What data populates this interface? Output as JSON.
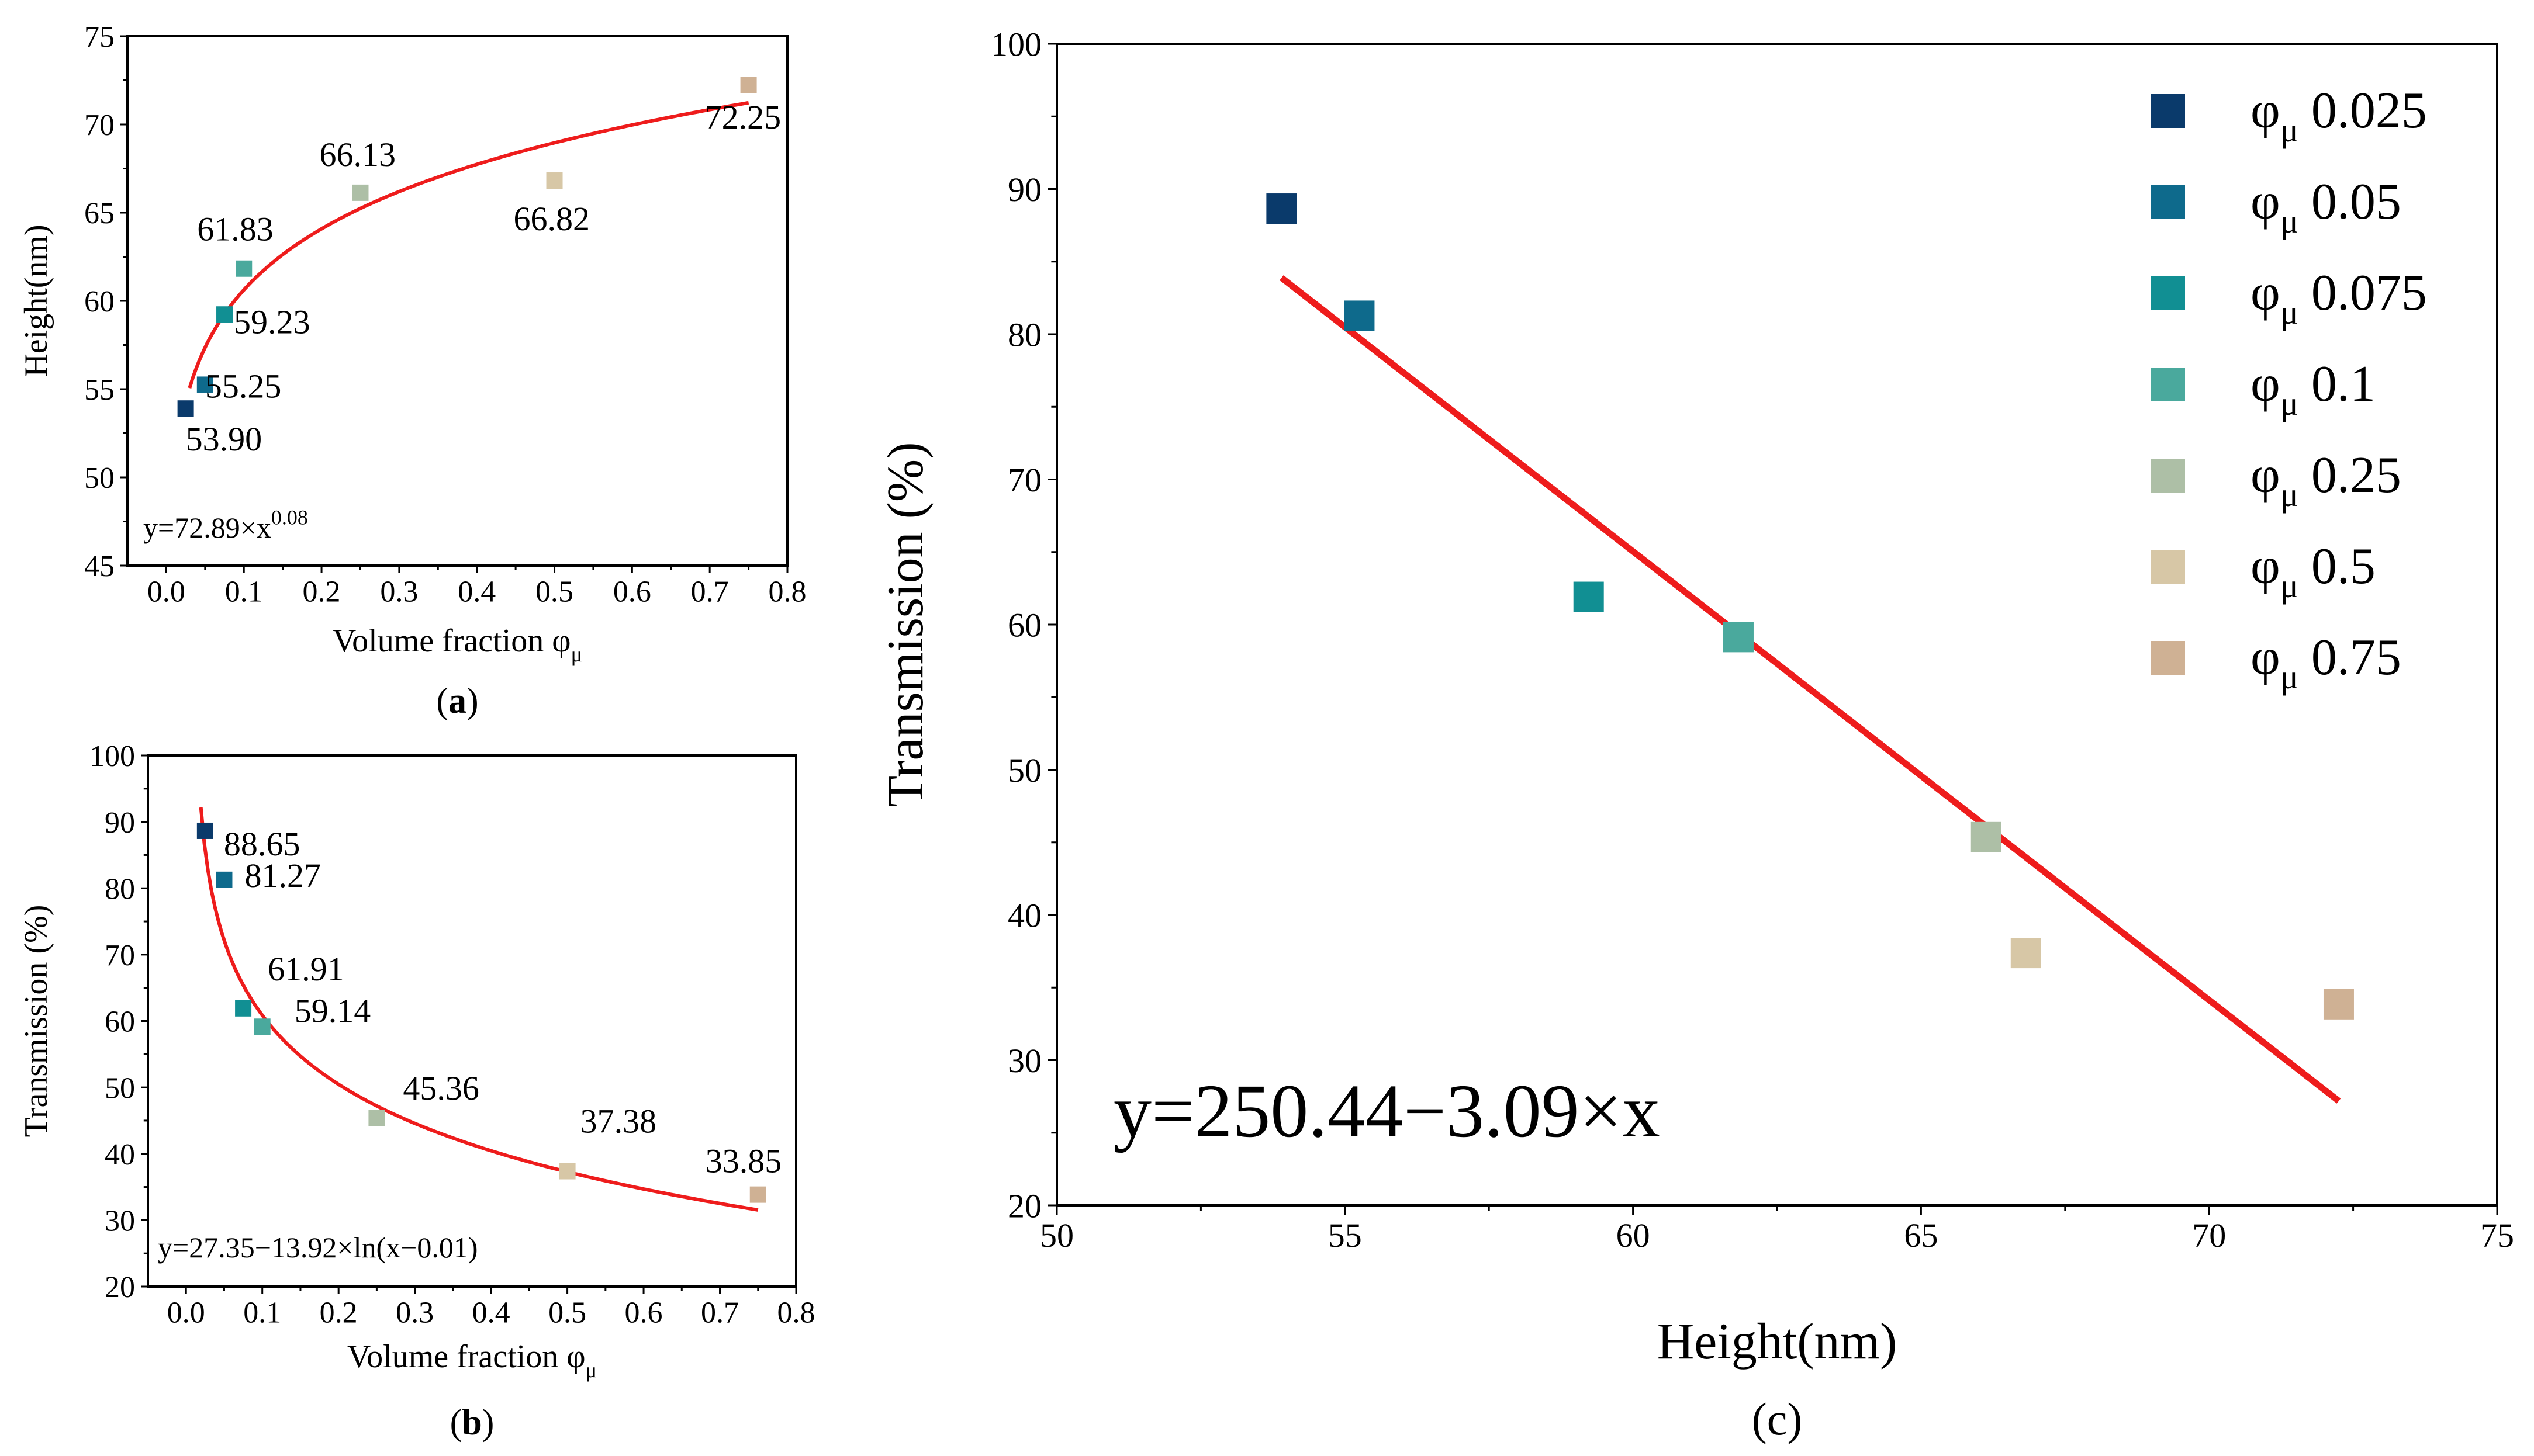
{
  "colors": {
    "fit": "#ee1c1c",
    "phi_0_025": "#0a3a6b",
    "phi_0_05": "#0e6a8c",
    "phi_0_075": "#118f93",
    "phi_0_1": "#4aa99d",
    "phi_0_25": "#adbfa6",
    "phi_0_5": "#d7c7a6",
    "phi_0_75": "#cfb194"
  },
  "chart_data": [
    {
      "id": "a",
      "type": "scatter",
      "title": "",
      "xlabel": "Volume fraction φ",
      "xlabel_sub": "μ",
      "ylabel": "Height(nm)",
      "xlim": [
        -0.05,
        0.8
      ],
      "ylim": [
        45,
        75
      ],
      "xticks": [
        0.0,
        0.1,
        0.2,
        0.3,
        0.4,
        0.5,
        0.6,
        0.7,
        0.8
      ],
      "xtick_labels": [
        "0.0",
        "0.1",
        "0.2",
        "0.3",
        "0.4",
        "0.5",
        "0.6",
        "0.7",
        "0.8"
      ],
      "yticks": [
        45,
        50,
        55,
        60,
        65,
        70,
        75
      ],
      "ytick_labels": [
        "45",
        "50",
        "55",
        "60",
        "65",
        "70",
        "75"
      ],
      "points": [
        {
          "x": 0.025,
          "y": 53.9,
          "label": "53.90",
          "color_key": "phi_0_025"
        },
        {
          "x": 0.05,
          "y": 55.25,
          "label": "55.25",
          "color_key": "phi_0_05"
        },
        {
          "x": 0.075,
          "y": 59.23,
          "label": "59.23",
          "color_key": "phi_0_075"
        },
        {
          "x": 0.1,
          "y": 61.83,
          "label": "61.83",
          "color_key": "phi_0_1"
        },
        {
          "x": 0.25,
          "y": 66.13,
          "label": "66.13",
          "color_key": "phi_0_25"
        },
        {
          "x": 0.5,
          "y": 66.82,
          "label": "66.82",
          "color_key": "phi_0_5"
        },
        {
          "x": 0.75,
          "y": 72.25,
          "label": "72.25",
          "color_key": "phi_0_75"
        }
      ],
      "fit": {
        "kind": "power",
        "a": 72.89,
        "b": 0.08,
        "x_range": [
          0.03,
          0.75
        ]
      },
      "equation_main": "y=72.89×x",
      "equation_sup": "0.08",
      "panel_label": "a"
    },
    {
      "id": "b",
      "type": "scatter",
      "title": "",
      "xlabel": "Volume fraction φ",
      "xlabel_sub": "μ",
      "ylabel": "Transmission (%)",
      "xlim": [
        -0.05,
        0.8
      ],
      "ylim": [
        20,
        100
      ],
      "xticks": [
        0.0,
        0.1,
        0.2,
        0.3,
        0.4,
        0.5,
        0.6,
        0.7,
        0.8
      ],
      "xtick_labels": [
        "0.0",
        "0.1",
        "0.2",
        "0.3",
        "0.4",
        "0.5",
        "0.6",
        "0.7",
        "0.8"
      ],
      "yticks": [
        20,
        30,
        40,
        50,
        60,
        70,
        80,
        90,
        100
      ],
      "ytick_labels": [
        "20",
        "30",
        "40",
        "50",
        "60",
        "70",
        "80",
        "90",
        "100"
      ],
      "points": [
        {
          "x": 0.025,
          "y": 88.65,
          "label": "88.65",
          "color_key": "phi_0_025"
        },
        {
          "x": 0.05,
          "y": 81.27,
          "label": "81.27",
          "color_key": "phi_0_05"
        },
        {
          "x": 0.075,
          "y": 61.91,
          "label": "61.91",
          "color_key": "phi_0_075"
        },
        {
          "x": 0.1,
          "y": 59.14,
          "label": "59.14",
          "color_key": "phi_0_1"
        },
        {
          "x": 0.25,
          "y": 45.36,
          "label": "45.36",
          "color_key": "phi_0_25"
        },
        {
          "x": 0.5,
          "y": 37.38,
          "label": "37.38",
          "color_key": "phi_0_5"
        },
        {
          "x": 0.75,
          "y": 33.85,
          "label": "33.85",
          "color_key": "phi_0_75"
        }
      ],
      "fit": {
        "kind": "log",
        "a": 27.35,
        "b": -13.92,
        "c": 0.01,
        "x_range": [
          0.0195,
          0.75
        ]
      },
      "equation_main": "y=27.35−13.92×ln(x−0.01)",
      "panel_label": "b"
    },
    {
      "id": "c",
      "type": "scatter",
      "title": "",
      "xlabel": "Height(nm)",
      "ylabel": "Transmission (%)",
      "xlim": [
        50,
        75
      ],
      "ylim": [
        20,
        100
      ],
      "xticks": [
        50,
        55,
        60,
        65,
        70,
        75
      ],
      "xtick_labels": [
        "50",
        "55",
        "60",
        "65",
        "70",
        "75"
      ],
      "yticks": [
        20,
        30,
        40,
        50,
        60,
        70,
        80,
        90,
        100
      ],
      "ytick_labels": [
        "20",
        "30",
        "40",
        "50",
        "60",
        "70",
        "80",
        "90",
        "100"
      ],
      "points": [
        {
          "x": 53.9,
          "y": 88.65,
          "color_key": "phi_0_025"
        },
        {
          "x": 55.25,
          "y": 81.27,
          "color_key": "phi_0_05"
        },
        {
          "x": 59.23,
          "y": 61.91,
          "color_key": "phi_0_075"
        },
        {
          "x": 61.83,
          "y": 59.14,
          "color_key": "phi_0_1"
        },
        {
          "x": 66.13,
          "y": 45.36,
          "color_key": "phi_0_25"
        },
        {
          "x": 66.82,
          "y": 37.38,
          "color_key": "phi_0_5"
        },
        {
          "x": 72.25,
          "y": 33.85,
          "color_key": "phi_0_75"
        }
      ],
      "fit": {
        "kind": "linear",
        "a": 250.44,
        "b": -3.09,
        "x_range": [
          53.9,
          72.25
        ]
      },
      "equation_main": "y=250.44−3.09×x",
      "legend": {
        "placement": "top-right",
        "symbol": "φ",
        "subscript": "μ",
        "entries": [
          {
            "value": "0.025",
            "color_key": "phi_0_025"
          },
          {
            "value": "0.05",
            "color_key": "phi_0_05"
          },
          {
            "value": "0.075",
            "color_key": "phi_0_075"
          },
          {
            "value": "0.1",
            "color_key": "phi_0_1"
          },
          {
            "value": "0.25",
            "color_key": "phi_0_25"
          },
          {
            "value": "0.5",
            "color_key": "phi_0_5"
          },
          {
            "value": "0.75",
            "color_key": "phi_0_75"
          }
        ]
      },
      "panel_label": "c"
    }
  ]
}
